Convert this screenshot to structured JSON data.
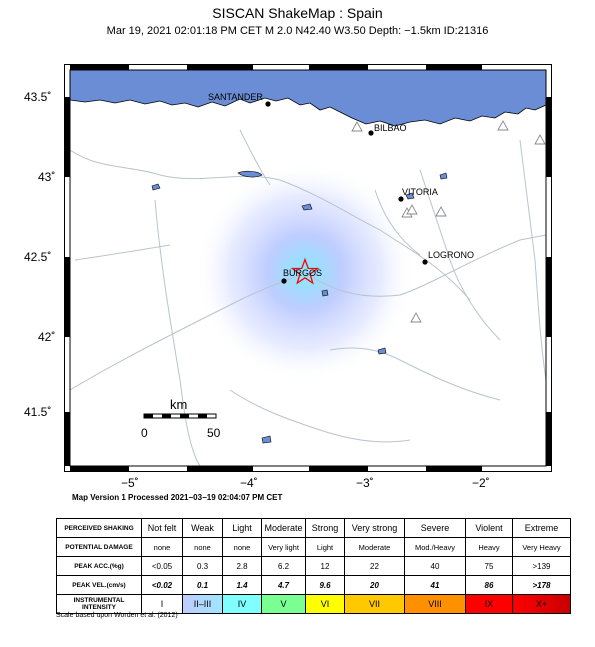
{
  "title": "SISCAN ShakeMap : Spain",
  "subtitle": "Mar 19, 2021 02:01:18 PM CET   M 2.0   N42.40 W3.50   Depth: −1.5km   ID:21316",
  "map": {
    "lat_ticks": [
      "43.5˚",
      "43˚",
      "42.5˚",
      "42˚",
      "41.5˚"
    ],
    "lon_ticks": [
      "−5˚",
      "−4˚",
      "−3˚",
      "−2˚"
    ],
    "cities": [
      {
        "name": "SANTANDER"
      },
      {
        "name": "BILBAO"
      },
      {
        "name": "VITORIA"
      },
      {
        "name": "LOGRONO"
      },
      {
        "name": "BURGOS"
      }
    ],
    "scale_bar": {
      "unit": "km",
      "start": "0",
      "end": "50"
    },
    "epicenter_icon": "star-icon",
    "station_icon": "triangle-icon",
    "sea_color": "#6b8dd6",
    "intensity_color": "#aabbff"
  },
  "footer": "Map Version 1 Processed 2021−03−19 02:04:07 PM CET",
  "legend": {
    "rows": [
      {
        "header": "PERCEIVED SHAKING",
        "cells": [
          "Not felt",
          "Weak",
          "Light",
          "Moderate",
          "Strong",
          "Very strong",
          "Severe",
          "Violent",
          "Extreme"
        ]
      },
      {
        "header": "POTENTIAL DAMAGE",
        "cells": [
          "none",
          "none",
          "none",
          "Very light",
          "Light",
          "Moderate",
          "Mod./Heavy",
          "Heavy",
          "Very Heavy"
        ]
      },
      {
        "header": "PEAK ACC.(%g)",
        "cells": [
          "<0.05",
          "0.3",
          "2.8",
          "6.2",
          "12",
          "22",
          "40",
          "75",
          ">139"
        ]
      },
      {
        "header": "PEAK VEL.(cm/s)",
        "cells": [
          "<0.02",
          "0.1",
          "1.4",
          "4.7",
          "9.6",
          "20",
          "41",
          "86",
          ">178"
        ]
      },
      {
        "header": "INSTRUMENTAL INTENSITY",
        "cells": [
          "I",
          "II–III",
          "IV",
          "V",
          "VI",
          "VII",
          "VIII",
          "IX",
          "X+"
        ]
      }
    ],
    "intensity_colors": [
      "#ffffff",
      "#bfccff",
      "#a0e6ff",
      "#80ffff",
      "#7aff93",
      "#ffff00",
      "#ffc800",
      "#ff9100",
      "#ff0000",
      "#c80000"
    ]
  },
  "scale_note": "Scale based upon Worden et al. (2012)"
}
